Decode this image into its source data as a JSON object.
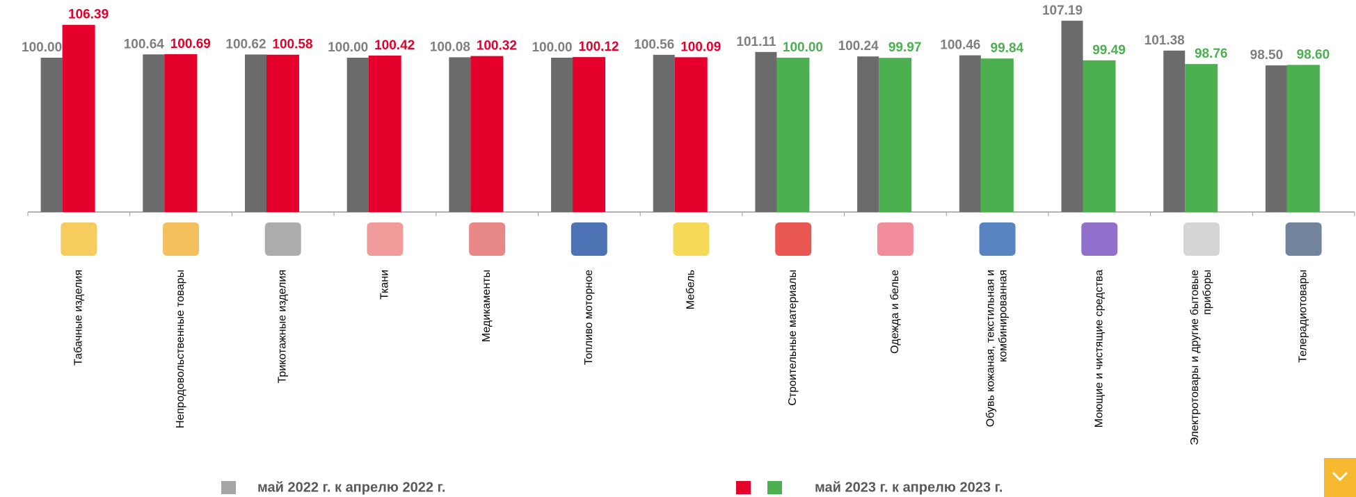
{
  "chart_data": {
    "type": "bar",
    "categories": [
      "Табачные изделия",
      "Непродовольственные товары",
      "Трикотажные изделия",
      "Ткани",
      "Медикаменты",
      "Топливо моторное",
      "Мебель",
      "Строительные материалы",
      "Одежда и белье",
      "Обувь кожаная, текстильная и\nкомбинированная",
      "Моющие и чистящие средства",
      "Электротовары и другие бытовые\nприборы",
      "Телерадиотовары"
    ],
    "series": [
      {
        "name": "май 2022 г. к апрелю 2022 г.",
        "color": "#6b6b6b",
        "values": [
          100.0,
          100.64,
          100.62,
          100.0,
          100.08,
          100.0,
          100.56,
          101.11,
          100.24,
          100.46,
          107.19,
          101.38,
          98.5
        ],
        "value_labels": [
          "100.00",
          "100.64",
          "100.62",
          "100.00",
          "100.08",
          "100.00",
          "100.56",
          "101.11",
          "100.24",
          "100.46",
          "107.19",
          "101.38",
          "98.50"
        ]
      },
      {
        "name": "май 2023 г. к апрелю 2023 г.",
        "colors": [
          "#e4002b",
          "#e4002b",
          "#e4002b",
          "#e4002b",
          "#e4002b",
          "#e4002b",
          "#e4002b",
          "#4caf50",
          "#4caf50",
          "#4caf50",
          "#4caf50",
          "#4caf50",
          "#4caf50"
        ],
        "values": [
          106.39,
          100.69,
          100.58,
          100.42,
          100.32,
          100.12,
          100.09,
          100.0,
          99.97,
          99.84,
          99.49,
          98.76,
          98.6
        ],
        "value_labels": [
          "106.39",
          "100.69",
          "100.58",
          "100.42",
          "100.32",
          "100.12",
          "100.09",
          "100.00",
          "99.97",
          "99.84",
          "99.49",
          "98.76",
          "98.60"
        ]
      }
    ],
    "ylim": [
      70,
      110
    ]
  }
}
